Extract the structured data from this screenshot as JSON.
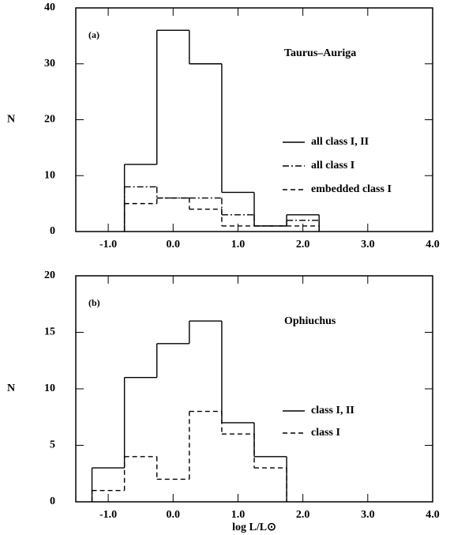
{
  "chart_data": [
    {
      "type": "histogram",
      "panel_label": "(a)",
      "annotation": "Taurus–Auriga",
      "y_label": "N",
      "bins": [
        -0.75,
        -0.25,
        0.25,
        0.75,
        1.25,
        1.75,
        2.25
      ],
      "series": [
        {
          "name": "all class I, II",
          "color": "#000",
          "dash": "solid",
          "values": [
            12,
            36,
            30,
            7,
            1,
            3
          ]
        },
        {
          "name": "all class I",
          "color": "#000",
          "dash": "dashdot",
          "values": [
            8,
            6,
            6,
            3,
            1,
            2
          ]
        },
        {
          "name": "embedded class I",
          "color": "#000",
          "dash": "dashed",
          "values": [
            5,
            6,
            4,
            1,
            1,
            1
          ]
        }
      ],
      "xlim": [
        -1.5,
        4.0
      ],
      "ylim": [
        0,
        40
      ],
      "xticks": [
        {
          "value": -1,
          "label": "-1.0"
        },
        {
          "value": 0,
          "label": "0.0"
        },
        {
          "value": 1,
          "label": "1.0"
        },
        {
          "value": 2,
          "label": "2.0"
        },
        {
          "value": 3,
          "label": "3.0"
        },
        {
          "value": 4,
          "label": "4.0"
        }
      ],
      "yticks": [
        0,
        10,
        20,
        30,
        40
      ],
      "legend": "right"
    },
    {
      "type": "histogram",
      "panel_label": "(b)",
      "annotation": "Ophiuchus",
      "y_label": "N",
      "x_label": "log L/L⊙",
      "bins": [
        -1.25,
        -0.75,
        -0.25,
        0.25,
        0.75,
        1.25,
        1.75
      ],
      "series": [
        {
          "name": "class I, II",
          "color": "#000",
          "dash": "solid",
          "values": [
            3,
            11,
            14,
            16,
            7,
            4
          ]
        },
        {
          "name": "class I",
          "color": "#000",
          "dash": "dashed",
          "values": [
            1,
            4,
            2,
            8,
            6,
            3
          ]
        }
      ],
      "xlim": [
        -1.5,
        4.0
      ],
      "ylim": [
        0,
        20
      ],
      "xticks": [
        {
          "value": -1,
          "label": "-1.0"
        },
        {
          "value": 0,
          "label": "0.0"
        },
        {
          "value": 1,
          "label": "1.0"
        },
        {
          "value": 2,
          "label": "2.0"
        },
        {
          "value": 3,
          "label": "3.0"
        },
        {
          "value": 4,
          "label": "4.0"
        }
      ],
      "yticks": [
        0,
        5,
        10,
        15,
        20
      ],
      "legend": "right"
    }
  ]
}
